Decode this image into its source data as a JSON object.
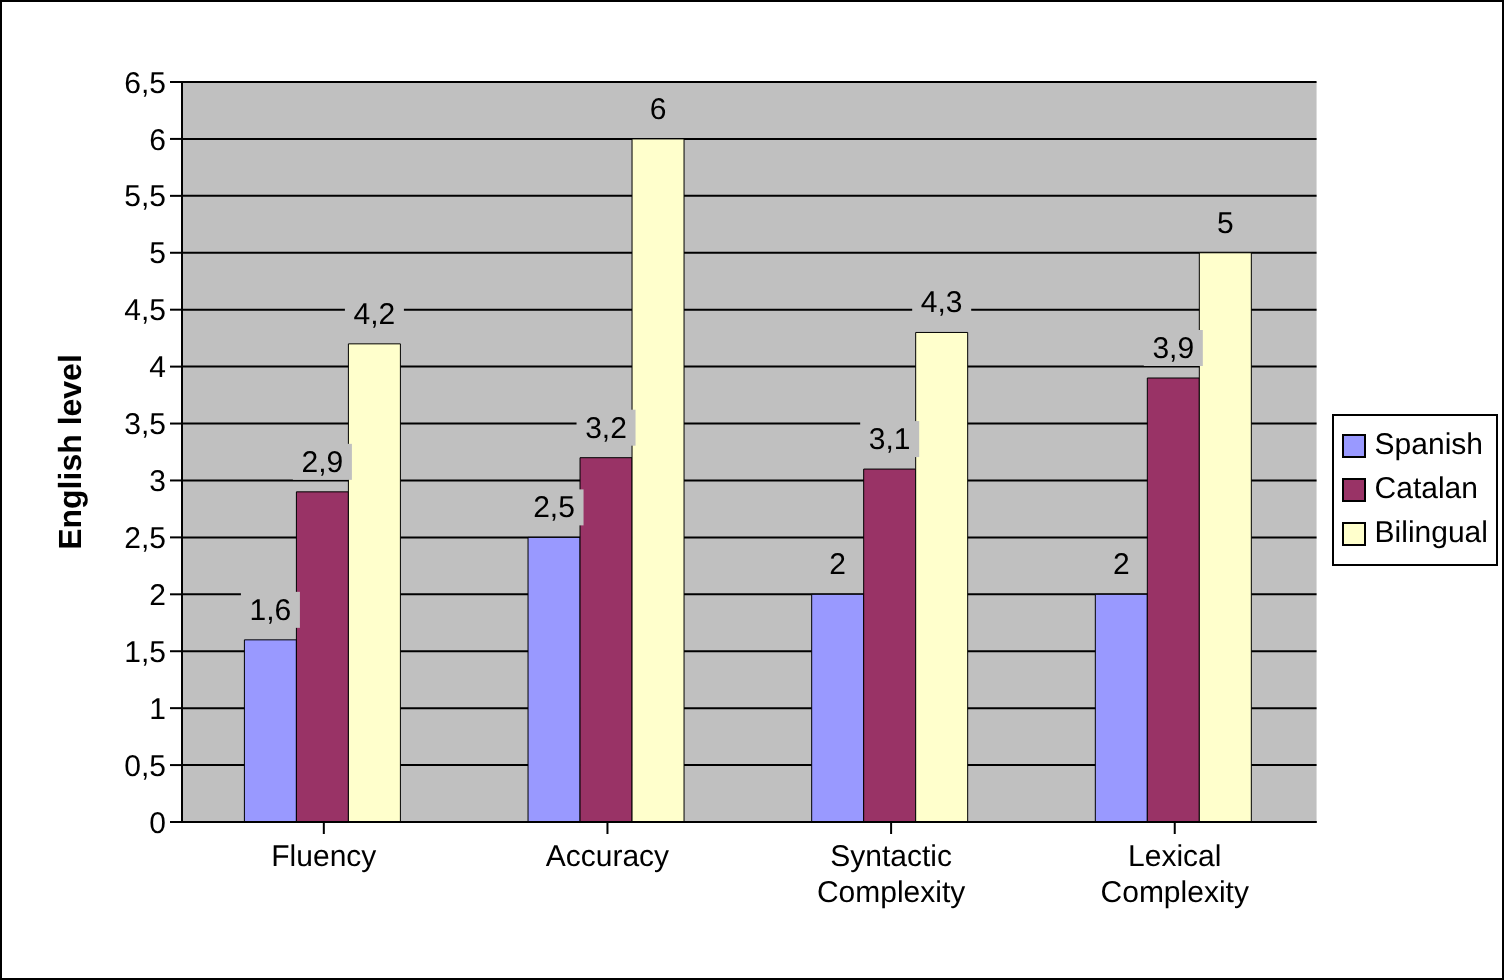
{
  "chart_data": {
    "type": "bar",
    "ylabel": "English level",
    "categories": [
      "Fluency",
      "Accuracy",
      "Syntactic Complexity",
      "Lexical Complexity"
    ],
    "series": [
      {
        "name": "Spanish",
        "color": "#9999ff",
        "values": [
          1.6,
          2.5,
          2,
          2
        ],
        "value_labels": [
          "1,6",
          "2,5",
          "2",
          "2"
        ]
      },
      {
        "name": "Catalan",
        "color": "#993366",
        "values": [
          2.9,
          3.2,
          3.1,
          3.9
        ],
        "value_labels": [
          "2,9",
          "3,2",
          "3,1",
          "3,9"
        ]
      },
      {
        "name": "Bilingual",
        "color": "#ffffcc",
        "values": [
          4.2,
          6,
          4.3,
          5
        ],
        "value_labels": [
          "4,2",
          "6",
          "4,3",
          "5"
        ]
      }
    ],
    "ylim": [
      0,
      6.5
    ],
    "yticks": [
      0,
      {
        "value": 0.5,
        "label": "0,5"
      },
      1,
      {
        "value": 1.5,
        "label": "1,5"
      },
      2,
      {
        "value": 2.5,
        "label": "2,5"
      },
      3,
      {
        "value": 3.5,
        "label": "3,5"
      },
      4,
      {
        "value": 4.5,
        "label": "4,5"
      },
      5,
      {
        "value": 5.5,
        "label": "5,5"
      },
      6,
      {
        "value": 6.5,
        "label": "6,5"
      }
    ],
    "grid": "y",
    "legend": "right"
  }
}
